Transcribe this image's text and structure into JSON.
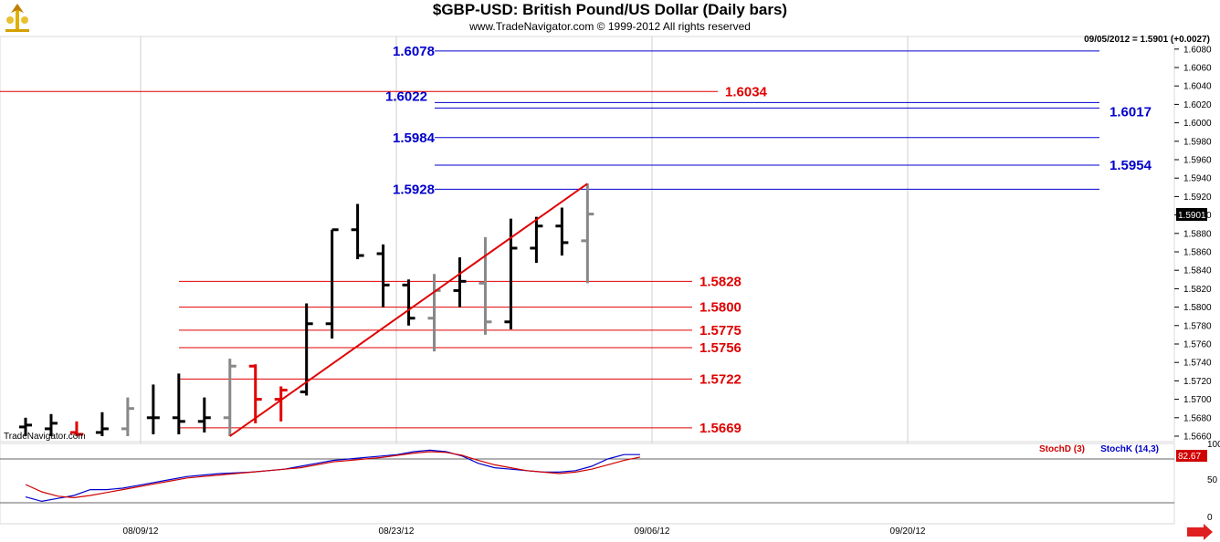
{
  "header": {
    "title": "$GBP-USD:  British Pound/US Dollar  (Daily bars)",
    "subtitle": "www.TradeNavigator.com © 1999-2012 All rights reserved",
    "quote": "09/05/2012 = 1.5901 (+0.0027)",
    "watermark": "TradeNavigator.com",
    "price_marker": "1.5901"
  },
  "indicator": {
    "stochd_label": "StochD (3)",
    "stochk_label": "StochK (14,3)",
    "stochd_value": "82.67",
    "stochd_color": "#d00000",
    "stochk_color": "#0000cc",
    "y_ticks": [
      "100",
      "50",
      "0"
    ]
  },
  "chart_data": {
    "type": "ohlc",
    "title": "$GBP-USD:  British Pound/US Dollar  (Daily bars)",
    "ylim": [
      1.566,
      1.609
    ],
    "y_ticks": [
      "1.6080",
      "1.6060",
      "1.6040",
      "1.6020",
      "1.6000",
      "1.5980",
      "1.5960",
      "1.5940",
      "1.5920",
      "1.5900",
      "1.5880",
      "1.5860",
      "1.5840",
      "1.5820",
      "1.5800",
      "1.5780",
      "1.5760",
      "1.5740",
      "1.5720",
      "1.5700",
      "1.5680",
      "1.5660"
    ],
    "x_labels": [
      "08/09/12",
      "08/23/12",
      "09/06/12",
      "09/20/12"
    ],
    "bars": [
      {
        "date": "07/30/12",
        "o": 1.567,
        "h": 1.568,
        "l": 1.566,
        "c": 1.5672,
        "color": "#000000"
      },
      {
        "date": "08/01/12",
        "o": 1.5668,
        "h": 1.5684,
        "l": 1.566,
        "c": 1.5674,
        "color": "#000000"
      },
      {
        "date": "08/02/12",
        "o": 1.5664,
        "h": 1.5676,
        "l": 1.566,
        "c": 1.5662,
        "color": "#e00000"
      },
      {
        "date": "08/03/12",
        "o": 1.5664,
        "h": 1.5686,
        "l": 1.566,
        "c": 1.5668,
        "color": "#000000"
      },
      {
        "date": "08/06/12",
        "o": 1.5668,
        "h": 1.5702,
        "l": 1.566,
        "c": 1.569,
        "color": "#888888"
      },
      {
        "date": "08/07/12",
        "o": 1.568,
        "h": 1.5716,
        "l": 1.5662,
        "c": 1.568,
        "color": "#000000"
      },
      {
        "date": "08/08/12",
        "o": 1.568,
        "h": 1.5728,
        "l": 1.5662,
        "c": 1.5676,
        "color": "#000000"
      },
      {
        "date": "08/09/12",
        "o": 1.5676,
        "h": 1.5702,
        "l": 1.5664,
        "c": 1.568,
        "color": "#000000"
      },
      {
        "date": "08/10/12",
        "o": 1.568,
        "h": 1.5744,
        "l": 1.566,
        "c": 1.5736,
        "color": "#888888"
      },
      {
        "date": "08/13/12",
        "o": 1.5736,
        "h": 1.5738,
        "l": 1.5674,
        "c": 1.57,
        "color": "#e00000"
      },
      {
        "date": "08/14/12",
        "o": 1.57,
        "h": 1.5714,
        "l": 1.5676,
        "c": 1.571,
        "color": "#e00000"
      },
      {
        "date": "08/15/12",
        "o": 1.5708,
        "h": 1.5804,
        "l": 1.5704,
        "c": 1.5782,
        "color": "#000000"
      },
      {
        "date": "08/16/12",
        "o": 1.5782,
        "h": 1.5884,
        "l": 1.5766,
        "c": 1.5884,
        "color": "#000000"
      },
      {
        "date": "08/17/12",
        "o": 1.5884,
        "h": 1.5912,
        "l": 1.5852,
        "c": 1.5856,
        "color": "#000000"
      },
      {
        "date": "08/20/12",
        "o": 1.5858,
        "h": 1.5868,
        "l": 1.58,
        "c": 1.5824,
        "color": "#000000"
      },
      {
        "date": "08/21/12",
        "o": 1.5824,
        "h": 1.583,
        "l": 1.578,
        "c": 1.5788,
        "color": "#000000"
      },
      {
        "date": "08/22/12",
        "o": 1.5788,
        "h": 1.5836,
        "l": 1.5752,
        "c": 1.5818,
        "color": "#888888"
      },
      {
        "date": "08/23/12",
        "o": 1.5818,
        "h": 1.5854,
        "l": 1.58,
        "c": 1.5828,
        "color": "#000000"
      },
      {
        "date": "08/24/12",
        "o": 1.5826,
        "h": 1.5876,
        "l": 1.577,
        "c": 1.5784,
        "color": "#888888"
      },
      {
        "date": "08/27/12",
        "o": 1.5784,
        "h": 1.5896,
        "l": 1.5776,
        "c": 1.5864,
        "color": "#000000"
      },
      {
        "date": "08/28/12",
        "o": 1.5864,
        "h": 1.5898,
        "l": 1.5848,
        "c": 1.5888,
        "color": "#000000"
      },
      {
        "date": "08/29/12",
        "o": 1.5888,
        "h": 1.5908,
        "l": 1.5856,
        "c": 1.587,
        "color": "#000000"
      },
      {
        "date": "08/30/12",
        "o": 1.5872,
        "h": 1.5934,
        "l": 1.5826,
        "c": 1.5901,
        "color": "#888888"
      }
    ],
    "levels_blue": [
      {
        "value": "1.6078"
      },
      {
        "value": "1.6022"
      },
      {
        "value": "1.6017"
      },
      {
        "value": "1.5984"
      },
      {
        "value": "1.5954"
      },
      {
        "value": "1.5928"
      }
    ],
    "levels_red": [
      {
        "value": "1.6034"
      },
      {
        "value": "1.5828"
      },
      {
        "value": "1.5800"
      },
      {
        "value": "1.5775"
      },
      {
        "value": "1.5756"
      },
      {
        "value": "1.5722"
      },
      {
        "value": "1.5669"
      }
    ],
    "trendline": {
      "from": {
        "date": "08/10/12",
        "value": 1.566
      },
      "to": {
        "date": "08/30/12",
        "value": 1.5934
      },
      "color": "#e00000"
    },
    "stochastic": {
      "stochk": [
        28,
        22,
        26,
        30,
        38,
        38,
        40,
        44,
        48,
        52,
        56,
        58,
        60,
        61,
        62,
        64,
        66,
        70,
        74,
        78,
        80,
        82,
        84,
        86,
        90,
        92,
        90,
        84,
        74,
        68,
        66,
        64,
        62,
        62,
        64,
        70,
        80,
        86,
        86
      ],
      "stochd": [
        45,
        35,
        29,
        27,
        30,
        34,
        38,
        42,
        46,
        50,
        54,
        56,
        58,
        60,
        62,
        64,
        66,
        68,
        72,
        76,
        78,
        80,
        82,
        85,
        88,
        90,
        89,
        85,
        78,
        72,
        68,
        64,
        62,
        60,
        62,
        66,
        72,
        78,
        82.67
      ]
    }
  }
}
